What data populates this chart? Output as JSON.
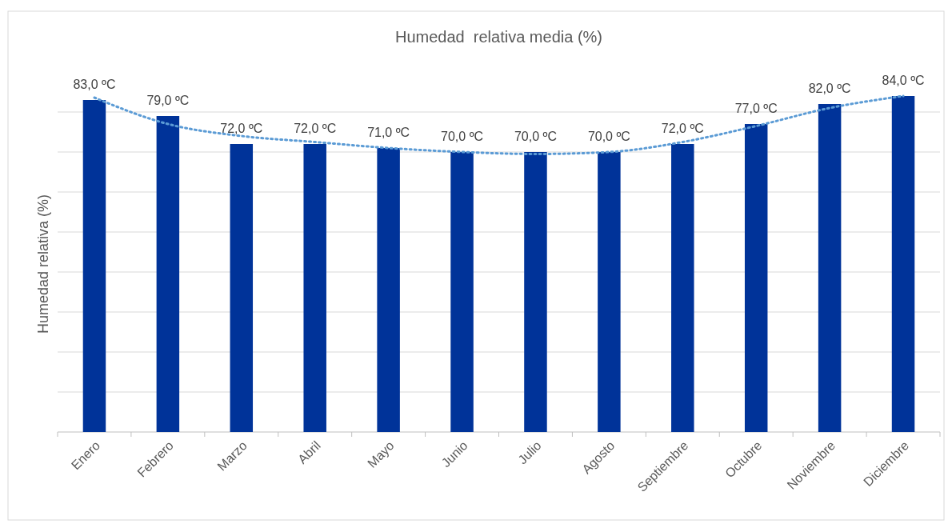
{
  "chart_data": {
    "type": "bar",
    "title": "Humedad  relativa media (%)",
    "ylabel": "Humedad relativa (%)",
    "categories": [
      "Enero",
      "Febrero",
      "Marzo",
      "Abril",
      "Mayo",
      "Junio",
      "Julio",
      "Agosto",
      "Septiembre",
      "Octubre",
      "Noviembre",
      "Diciembre"
    ],
    "series": [
      {
        "color": "#003399",
        "values": [
          83,
          79,
          72,
          72,
          71,
          70,
          70,
          70,
          72,
          77,
          82,
          84
        ],
        "value_labels": [
          "83,0 ºC",
          "79,0 ºC",
          "72,0 ºC",
          "72,0 ºC",
          "71,0 ºC",
          "70,0 ºC",
          "70,0 ºC",
          "70,0 ºC",
          "72,0 ºC",
          "77,0 ºC",
          "82,0 ºC",
          "84,0 ºC"
        ]
      },
      {
        "type": "line",
        "color": "#5b9bd5",
        "line_style": "dotted",
        "marker": "none",
        "values": [
          83.6,
          77,
          74,
          72.5,
          71,
          70,
          69.5,
          70,
          72.5,
          76.5,
          81,
          84
        ]
      }
    ],
    "yticks": [
      {
        "value": 0,
        "label": null
      },
      {
        "value": 10,
        "label": null
      },
      {
        "value": 20,
        "label": null
      },
      {
        "value": 30,
        "label": null
      },
      {
        "value": 40,
        "label": null
      },
      {
        "value": 50,
        "label": null
      },
      {
        "value": 60,
        "label": null
      },
      {
        "value": 70,
        "label": null
      },
      {
        "value": 80,
        "label": null
      }
    ],
    "grid": "y",
    "tick_labels": "x"
  }
}
